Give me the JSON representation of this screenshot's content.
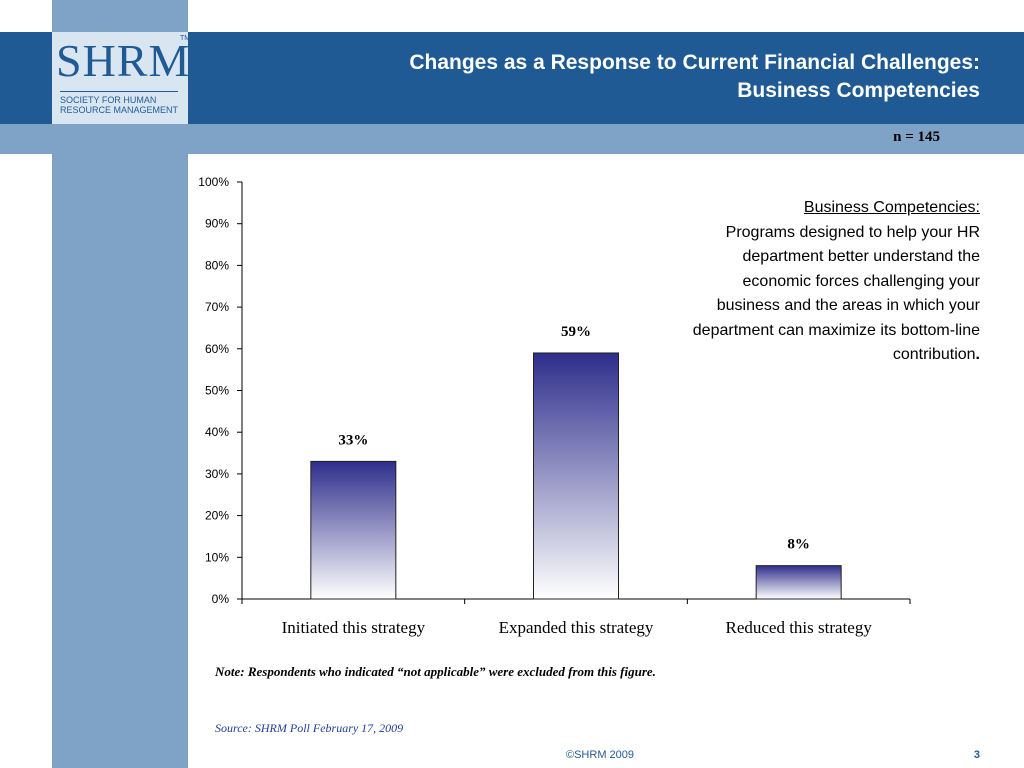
{
  "slide": {
    "title_line1": "Changes as a Response to Current Financial Challenges:",
    "title_line2": "Business Competencies",
    "n_label": "n = 145",
    "note": "Note: Respondents who indicated “not applicable” were excluded from this figure.",
    "source": "Source: SHRM Poll February 17, 2009",
    "copyright": "©SHRM 2009",
    "page_number": "3"
  },
  "logo": {
    "name": "SHRM",
    "tm": "TM",
    "subtitle_line1": "SOCIETY FOR HUMAN",
    "subtitle_line2": "RESOURCE MANAGEMENT"
  },
  "description": {
    "heading": "Business Competencies:",
    "body": "Programs designed to help your HR department better understand the economic forces challenging your business and the areas in which your department can maximize its bottom-line contribution",
    "end_mark": "."
  },
  "colors": {
    "header": "#1f5a94",
    "band": "#7ea3c7",
    "bar_top": "#2e2e8c",
    "bar_bottom": "#ffffff"
  },
  "chart_data": {
    "type": "bar",
    "categories": [
      "Initiated this strategy",
      "Expanded this strategy",
      "Reduced this strategy"
    ],
    "values": [
      33,
      59,
      8
    ],
    "data_labels": [
      "33%",
      "59%",
      "8%"
    ],
    "y_ticks": [
      "0%",
      "10%",
      "20%",
      "30%",
      "40%",
      "50%",
      "60%",
      "70%",
      "80%",
      "90%",
      "100%"
    ],
    "ylim": [
      0,
      100
    ],
    "grid": false,
    "legend": "none"
  }
}
